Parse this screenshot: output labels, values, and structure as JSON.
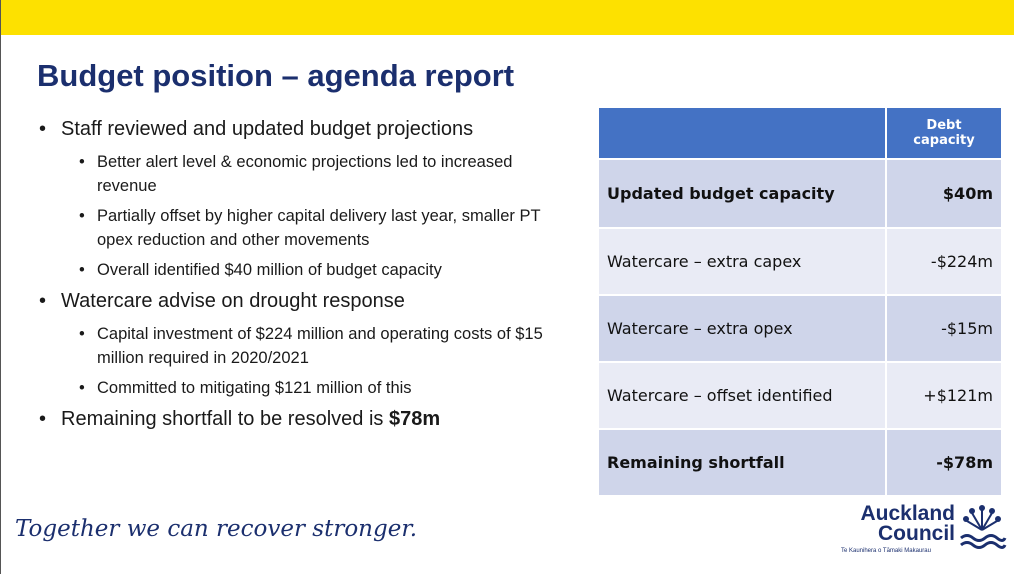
{
  "header": {
    "title": "Budget position – agenda report"
  },
  "bullets": [
    {
      "text": "Staff reviewed and updated budget projections",
      "sub": [
        "Better alert level & economic projections led to increased revenue",
        "Partially offset by higher capital delivery last year, smaller PT opex reduction and other movements",
        "Overall identified $40 million of budget capacity"
      ]
    },
    {
      "text": "Watercare advise on drought response",
      "sub": [
        "Capital investment of $224 million and operating costs of $15 million required in 2020/2021",
        "Committed to mitigating $121 million of this"
      ]
    },
    {
      "text": "Remaining shortfall to be resolved is",
      "bold": "$78m"
    }
  ],
  "table": {
    "column": "Debt capacity",
    "rows": [
      {
        "label": "Updated budget capacity",
        "value": "$40m",
        "bold": true
      },
      {
        "label": "Watercare – extra capex",
        "value": "-$224m",
        "bold": false
      },
      {
        "label": "Watercare – extra opex",
        "value": "-$15m",
        "bold": false
      },
      {
        "label": "Watercare – offset identified",
        "value": "+$121m",
        "bold": false
      },
      {
        "label": "Remaining shortfall",
        "value": "-$78m",
        "bold": true
      }
    ]
  },
  "footer": {
    "tagline": "Together we can recover stronger.",
    "logo": "Auckland Council",
    "logo_sub": "Te Kaunihera o Tāmaki Makaurau"
  }
}
